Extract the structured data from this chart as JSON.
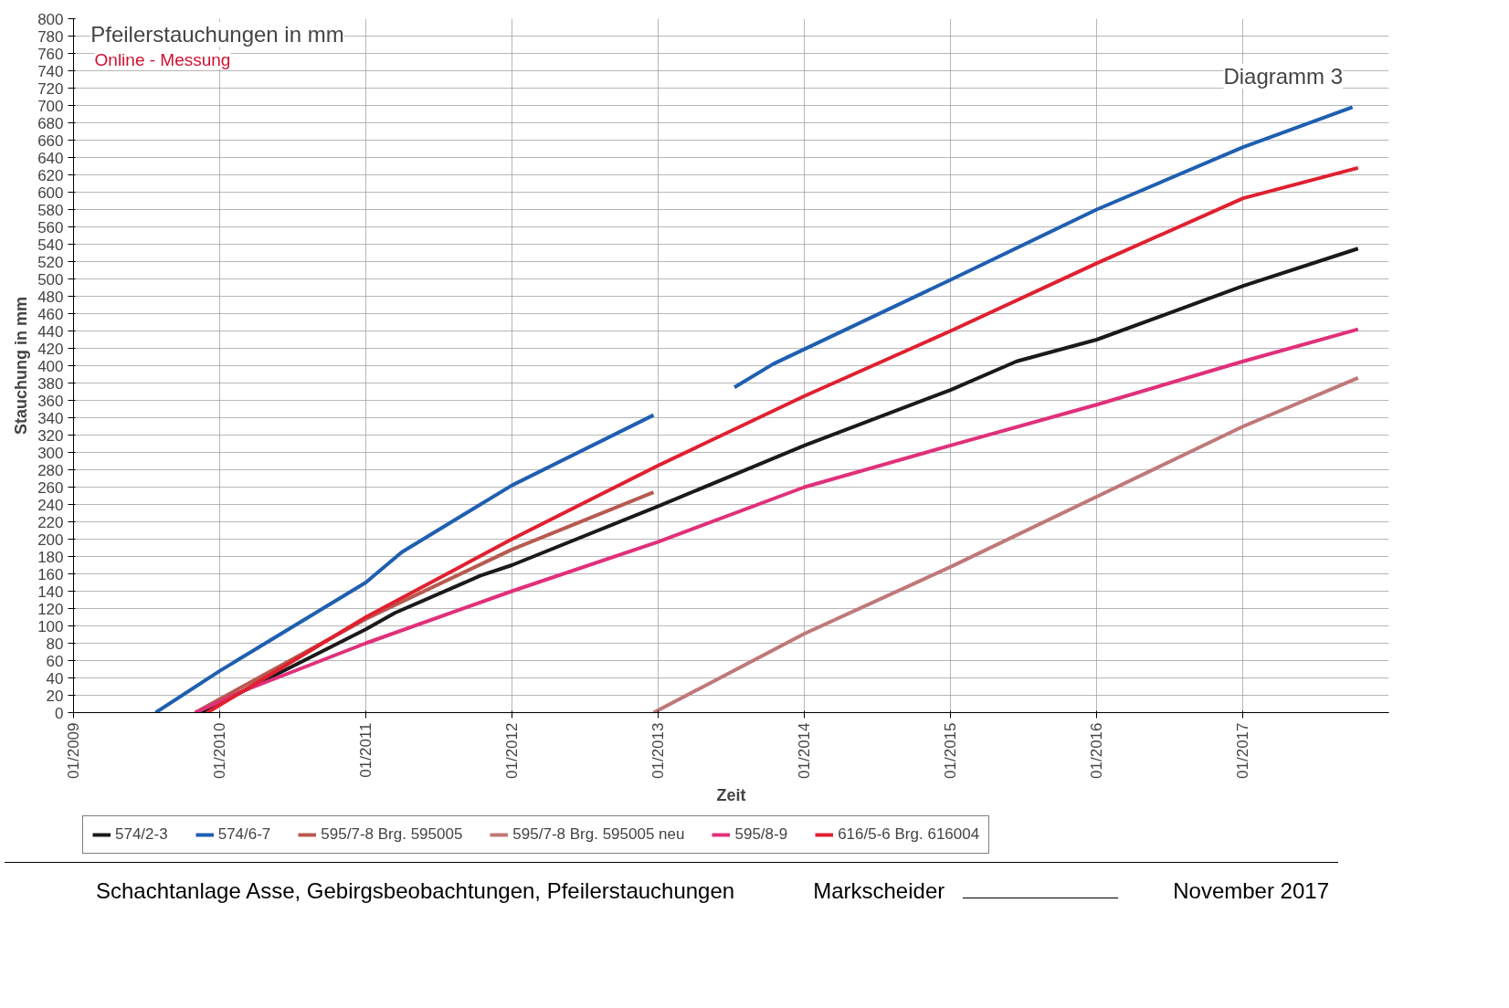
{
  "chart_data": {
    "type": "line",
    "title": "Pfeilerstauchungen in mm",
    "subtitle": "Online - Messung",
    "xlabel": "Zeit",
    "ylabel": "Stauchung in mm",
    "annotations": [
      "Diagramm 3",
      "Schachtanlage Asse, Gebirgsbeobachtungen, Pfeilerstauchungen",
      "Markscheider",
      "November 2017"
    ],
    "xlim": [
      "2009-01-01",
      "2017-12-31"
    ],
    "xticks": [
      {
        "value": "2009-01-01",
        "label": "01/2009"
      },
      {
        "value": "2010-01-01",
        "label": "01/2010"
      },
      {
        "value": "2011-01-01",
        "label": "01/2011"
      },
      {
        "value": "2012-01-01",
        "label": "01/2012"
      },
      {
        "value": "2013-01-01",
        "label": "01/2013"
      },
      {
        "value": "2014-01-01",
        "label": "01/2014"
      },
      {
        "value": "2015-01-01",
        "label": "01/2015"
      },
      {
        "value": "2016-01-01",
        "label": "01/2016"
      },
      {
        "value": "2017-01-01",
        "label": "01/2017"
      }
    ],
    "ylim": [
      0,
      800
    ],
    "yticks": [
      0,
      20,
      40,
      60,
      80,
      100,
      120,
      140,
      160,
      180,
      200,
      220,
      240,
      260,
      280,
      300,
      320,
      340,
      360,
      380,
      400,
      420,
      440,
      460,
      480,
      500,
      520,
      540,
      560,
      580,
      600,
      620,
      640,
      660,
      680,
      700,
      720,
      740,
      760,
      780,
      800
    ],
    "grid": true,
    "legend": "bottom",
    "line_style": "solid",
    "series": [
      {
        "name": "574/2-3",
        "color": "#1a1a1a",
        "x": [
          "2009-11-15",
          "2011-01-01",
          "2011-03-15",
          "2011-10-15",
          "2012-01-01",
          "2013-01-01",
          "2014-01-01",
          "2015-01-01",
          "2015-06-15",
          "2016-01-01",
          "2017-01-01",
          "2017-10-15"
        ],
        "values": [
          0,
          96,
          115,
          158,
          170,
          238,
          308,
          372,
          405,
          430,
          492,
          535
        ]
      },
      {
        "name": "574/6-7",
        "color": "#1f5fb0",
        "x": [
          "2009-07-25",
          "2010-01-01",
          "2011-01-01",
          "2011-04-01",
          "2012-01-01",
          "2012-12-20",
          "2013-03-01",
          "2013-07-10",
          "2013-10-15",
          "2015-01-01",
          "2016-01-01",
          "2017-01-01",
          "2017-10-01"
        ],
        "values": [
          0,
          48,
          150,
          185,
          262,
          343,
          null,
          375,
          402,
          499,
          580,
          652,
          698
        ]
      },
      {
        "name": "595/7-8 Brg. 595005",
        "color": "#b85a50",
        "x": [
          "2009-11-01",
          "2011-01-01",
          "2012-01-01",
          "2012-12-20"
        ],
        "values": [
          0,
          108,
          188,
          254
        ]
      },
      {
        "name": "595/7-8 Brg. 595005 neu",
        "color": "#c07878",
        "x": [
          "2012-12-20",
          "2014-01-01",
          "2015-01-01",
          "2016-01-01",
          "2017-01-01",
          "2017-10-15"
        ],
        "values": [
          0,
          91,
          168,
          249,
          330,
          386
        ]
      },
      {
        "name": "595/8-9",
        "color": "#e0307a",
        "x": [
          "2009-11-01",
          "2010-03-01",
          "2011-01-01",
          "2012-01-01",
          "2013-01-01",
          "2014-01-01",
          "2015-01-01",
          "2016-01-01",
          "2017-01-01",
          "2017-10-15"
        ],
        "values": [
          0,
          25,
          80,
          140,
          197,
          260,
          308,
          355,
          405,
          442
        ]
      },
      {
        "name": "616/5-6 Brg. 616004",
        "color": "#e02030",
        "x": [
          "2009-12-01",
          "2011-01-01",
          "2012-01-01",
          "2013-01-01",
          "2014-01-01",
          "2015-01-01",
          "2016-01-01",
          "2017-01-01",
          "2017-10-15"
        ],
        "values": [
          0,
          110,
          200,
          285,
          365,
          440,
          518,
          593,
          628
        ]
      }
    ]
  }
}
